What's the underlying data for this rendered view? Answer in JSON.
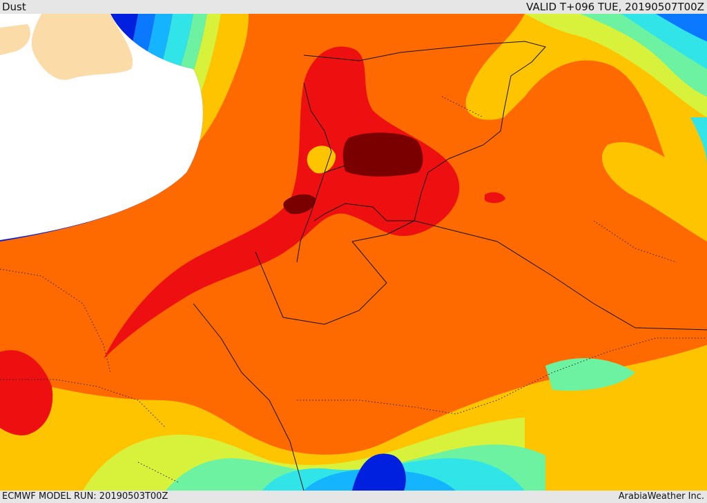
{
  "header": {
    "title": "Dust",
    "valid_time": "VALID T+096 TUE, 20190507T00Z"
  },
  "footer": {
    "model_run": "ECMWF MODEL RUN: 20190503T00Z",
    "provider": "ArabiaWeather Inc."
  },
  "palette": {
    "land": "#fbdba8",
    "sea_white": "#ffffff",
    "blue": "#0020e0",
    "mid_blue": "#0a78ff",
    "sky": "#14b4ff",
    "cyan": "#30e4e8",
    "green": "#6cf2a0",
    "yellow_green": "#d8f23c",
    "yellow": "#ffc400",
    "orange": "#ff6a00",
    "red": "#ee1010",
    "dark_red": "#7a0000"
  }
}
